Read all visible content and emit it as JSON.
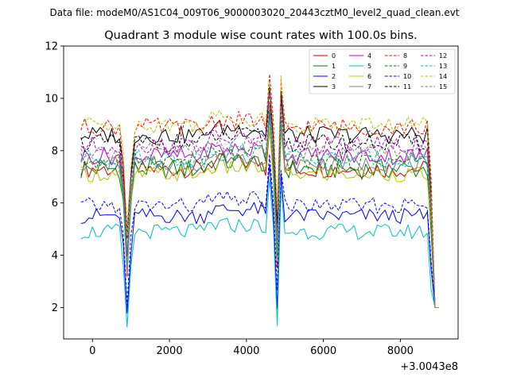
{
  "chart_data": {
    "type": "line",
    "suptitle": "Data file: modeM0/AS1C04_009T06_9000003020_20443cztM0_level2_quad_clean.evt",
    "title": "Quadrant 3 module wise count rates with 100.0s bins.",
    "xlabel": "",
    "ylabel": "",
    "x_offset_label": "+3.0043e8",
    "xlim": [
      -750,
      9500
    ],
    "ylim": [
      0.8,
      12
    ],
    "xticks": [
      0,
      2000,
      4000,
      6000,
      8000
    ],
    "yticks": [
      2,
      4,
      6,
      8,
      10,
      12
    ],
    "xtick_labels": [
      "0",
      "2000",
      "4000",
      "6000",
      "8000"
    ],
    "ytick_labels": [
      "2",
      "4",
      "6",
      "8",
      "10",
      "12"
    ],
    "x_start": -300,
    "x_step": 100,
    "legend_position": "top-right",
    "legend_columns": 4,
    "series": [
      {
        "name": "0",
        "color": "#cc0000",
        "dash": "solid",
        "base": 7.3,
        "spread": 0.35
      },
      {
        "name": "1",
        "color": "#008000",
        "dash": "solid",
        "base": 7.3,
        "spread": 0.4
      },
      {
        "name": "2",
        "color": "#0000ff",
        "dash": "solid",
        "base": 5.5,
        "spread": 0.3
      },
      {
        "name": "3",
        "color": "#000000",
        "dash": "solid",
        "base": 8.6,
        "spread": 0.35
      },
      {
        "name": "4",
        "color": "#bf00bf",
        "dash": "solid",
        "base": 7.8,
        "spread": 0.35
      },
      {
        "name": "5",
        "color": "#00bfbf",
        "dash": "solid",
        "base": 4.9,
        "spread": 0.3
      },
      {
        "name": "6",
        "color": "#bfbf00",
        "dash": "solid",
        "base": 7.1,
        "spread": 0.3
      },
      {
        "name": "7",
        "color": "#808080",
        "dash": "solid",
        "base": 7.5,
        "spread": 0.3
      },
      {
        "name": "8",
        "color": "#ff0000",
        "dash": "dashed",
        "base": 8.9,
        "spread": 0.35
      },
      {
        "name": "9",
        "color": "#008000",
        "dash": "dashed",
        "base": 7.6,
        "spread": 0.35
      },
      {
        "name": "10",
        "color": "#0000ff",
        "dash": "dashed",
        "base": 5.9,
        "spread": 0.3
      },
      {
        "name": "11",
        "color": "#000000",
        "dash": "dashed",
        "base": 8.3,
        "spread": 0.35
      },
      {
        "name": "12",
        "color": "#bf00bf",
        "dash": "dashed",
        "base": 8.2,
        "spread": 0.35
      },
      {
        "name": "13",
        "color": "#00bfbf",
        "dash": "dashed",
        "base": 7.7,
        "spread": 0.35
      },
      {
        "name": "14",
        "color": "#bfbf00",
        "dash": "dashed",
        "base": 9.0,
        "spread": 0.35
      },
      {
        "name": "15",
        "color": "#808080",
        "dash": "dashed",
        "base": 8.0,
        "spread": 0.3
      }
    ]
  }
}
